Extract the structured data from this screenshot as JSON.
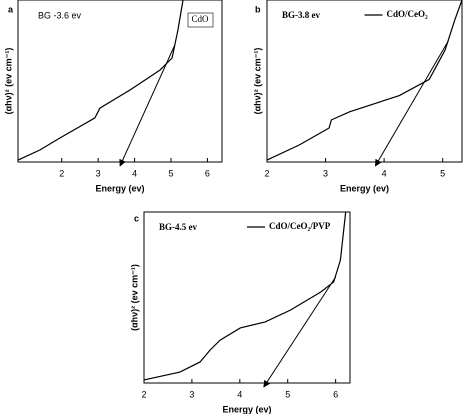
{
  "chart_data": [
    {
      "type": "line",
      "panel": "a",
      "annotation": "BG -3.6 ev",
      "xlabel": "Energy (ev)",
      "ylabel": "(αhν)² (ev cm⁻¹)",
      "xlim": [
        0.8,
        6.4
      ],
      "xticks": [
        2,
        3,
        4,
        5,
        6
      ],
      "ylim": [
        0,
        100
      ],
      "x": [
        0.8,
        1.4,
        1.95,
        2.91,
        3.05,
        3.87,
        4.7,
        5.03,
        5.19,
        5.33
      ],
      "series": [
        {
          "name": "CdO",
          "color": "#000000",
          "values": [
            1.2,
            7.4,
            14.8,
            27.2,
            33.3,
            44.4,
            56.8,
            64.2,
            81.5,
            100
          ]
        }
      ],
      "fit_line": {
        "x": [
          5.1,
          3.6
        ],
        "y": [
          72,
          0
        ]
      },
      "legend": "box"
    },
    {
      "type": "line",
      "panel": "b",
      "annotation": "BG-3.8 ev",
      "xlabel": "Energy (ev)",
      "ylabel": "(αhν)² (ev cm⁻¹)",
      "xlim": [
        2,
        5.33
      ],
      "xticks": [
        2,
        3,
        4,
        5
      ],
      "ylim": [
        0,
        100
      ],
      "x": [
        2.0,
        2.55,
        3.06,
        3.1,
        3.41,
        4.26,
        4.77,
        5.04,
        5.21,
        5.33
      ],
      "series": [
        {
          "name": "CdO/CeO₂",
          "color": "#000000",
          "values": [
            1.2,
            10.5,
            21,
            26,
            31,
            41,
            51,
            69,
            88,
            100
          ]
        }
      ],
      "fit_line": {
        "x": [
          5.1,
          3.85
        ],
        "y": [
          75,
          0
        ]
      },
      "legend": "line"
    },
    {
      "type": "line",
      "panel": "c",
      "annotation": "BG-4.5 ev",
      "xlabel": "Energy (ev)",
      "ylabel": "(αhν)² (ev cm⁻¹)",
      "xlim": [
        2,
        6.3
      ],
      "xticks": [
        2,
        3,
        4,
        5,
        6
      ],
      "ylim": [
        0,
        100
      ],
      "x": [
        2.0,
        2.75,
        3.17,
        3.38,
        3.59,
        4.01,
        4.53,
        5.06,
        5.69,
        5.96,
        6.1,
        6.21
      ],
      "series": [
        {
          "name": "CdO/CeO₂/PVP",
          "color": "#000000",
          "values": [
            1.8,
            6.4,
            12.3,
            19.3,
            25.1,
            32.2,
            35.7,
            42.7,
            53.2,
            59.1,
            71.9,
            100
          ]
        }
      ],
      "fit_line": {
        "x": [
          6.0,
          4.5
        ],
        "y": [
          62,
          0
        ]
      },
      "legend": "line"
    }
  ]
}
